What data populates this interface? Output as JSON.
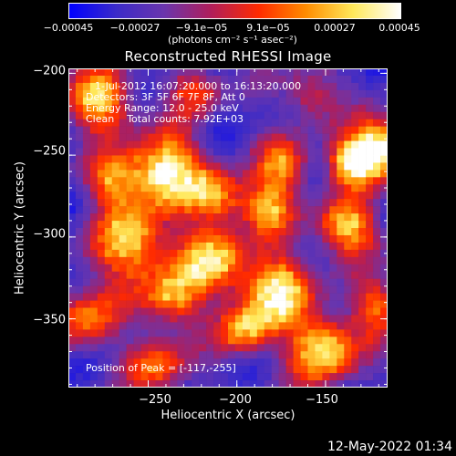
{
  "chart_data": {
    "type": "heatmap",
    "title": "Reconstructed RHESSI Image",
    "xlabel": "Heliocentric X (arcsec)",
    "ylabel": "Heliocentric Y (arcsec)",
    "xlim": [
      -295,
      -115
    ],
    "ylim": [
      -392,
      -197
    ],
    "x_ticks": [
      -250,
      -200,
      -150
    ],
    "x_tick_labels": [
      "−250",
      "−200",
      "−150"
    ],
    "y_ticks": [
      -200,
      -250,
      -300,
      -350
    ],
    "y_tick_labels": [
      "−200",
      "−250",
      "−300",
      "−350"
    ],
    "colorbar": {
      "range": [
        -0.00045,
        0.00045
      ],
      "tick_values": [
        -0.00045,
        -0.00027,
        -9.1e-05,
        9.1e-05,
        0.00027,
        0.00045
      ],
      "tick_labels": [
        "−0.00045",
        "−0.00027",
        "−9.1e−05",
        "9.1e−05",
        "0.00027",
        "0.00045"
      ],
      "units": "(photons cm⁻² s⁻¹ asec⁻²)",
      "colors": [
        "#0000ff",
        "#3b2bc8",
        "#6a35ad",
        "#b01e5a",
        "#ff2a00",
        "#ff8c00",
        "#ffe85a",
        "#ffffff"
      ]
    },
    "annotations": {
      "time_range": "1-Jul-2012 16:07:20.000 to 16:13:20.000",
      "detectors": "Detectors: 3F 5F 6F 7F 8F, Att 0",
      "energy": "Energy Range: 12.0 - 25.0 keV",
      "clean": "Clean    Total counts: 7.92E+03",
      "peak": "Position of Peak = [-117,-255]"
    },
    "peak_position": [
      -117,
      -255
    ],
    "grid": false
  },
  "timestamp": "12-May-2022 01:34"
}
